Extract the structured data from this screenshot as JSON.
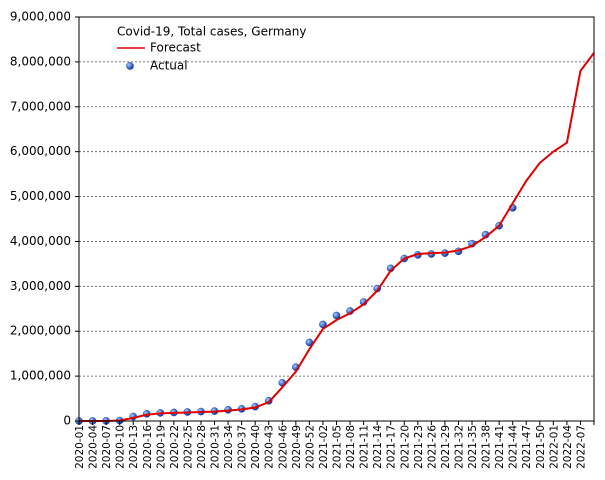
{
  "chart_data": {
    "type": "line-scatter",
    "legend_title": "Covid-19, Total cases, Germany",
    "categories": [
      "2020-01",
      "2020-04",
      "2020-07",
      "2020-10",
      "2020-13",
      "2020-16",
      "2020-19",
      "2020-22",
      "2020-25",
      "2020-28",
      "2020-31",
      "2020-34",
      "2020-37",
      "2020-40",
      "2020-43",
      "2020-46",
      "2020-49",
      "2020-52",
      "2021-02",
      "2021-05",
      "2021-08",
      "2021-11",
      "2021-14",
      "2021-17",
      "2021-20",
      "2021-23",
      "2021-26",
      "2021-29",
      "2021-32",
      "2021-35",
      "2021-38",
      "2021-41",
      "2021-44",
      "2021-47",
      "2021-50",
      "2022-01",
      "2022-04",
      "2022-07",
      null
    ],
    "series": [
      {
        "name": "Forecast",
        "kind": "line",
        "color": "#e00000",
        "values": [
          0,
          0,
          0,
          10000,
          70000,
          140000,
          170000,
          180000,
          190000,
          200000,
          210000,
          230000,
          260000,
          300000,
          420000,
          750000,
          1100000,
          1600000,
          2050000,
          2250000,
          2400000,
          2600000,
          2900000,
          3350000,
          3620000,
          3720000,
          3740000,
          3750000,
          3800000,
          3900000,
          4100000,
          4350000,
          4850000,
          5350000,
          5750000,
          6000000,
          6200000,
          7800000,
          8200000
        ]
      },
      {
        "name": "Actual",
        "kind": "scatter",
        "color": "#1f4fc4",
        "values": [
          0,
          1000,
          2000,
          10000,
          100000,
          160000,
          180000,
          190000,
          200000,
          210000,
          220000,
          250000,
          270000,
          320000,
          450000,
          850000,
          1200000,
          1750000,
          2150000,
          2350000,
          2450000,
          2650000,
          2950000,
          3400000,
          3620000,
          3700000,
          3720000,
          3740000,
          3780000,
          3950000,
          4150000,
          4350000,
          4750000,
          null,
          null,
          null,
          null,
          null,
          null
        ]
      }
    ],
    "ylim": [
      0,
      9000000
    ],
    "yticks": [
      0,
      {
        "value": 1000000,
        "label": "1,000,000"
      },
      {
        "value": 2000000,
        "label": "2,000,000"
      },
      {
        "value": 3000000,
        "label": "3,000,000"
      },
      {
        "value": 4000000,
        "label": "4,000,000"
      },
      {
        "value": 5000000,
        "label": "5,000,000"
      },
      {
        "value": 6000000,
        "label": "6,000,000"
      },
      {
        "value": 7000000,
        "label": "7,000,000"
      },
      {
        "value": 8000000,
        "label": "8,000,000"
      },
      {
        "value": 9000000,
        "label": "9,000,000"
      }
    ],
    "grid": true
  }
}
